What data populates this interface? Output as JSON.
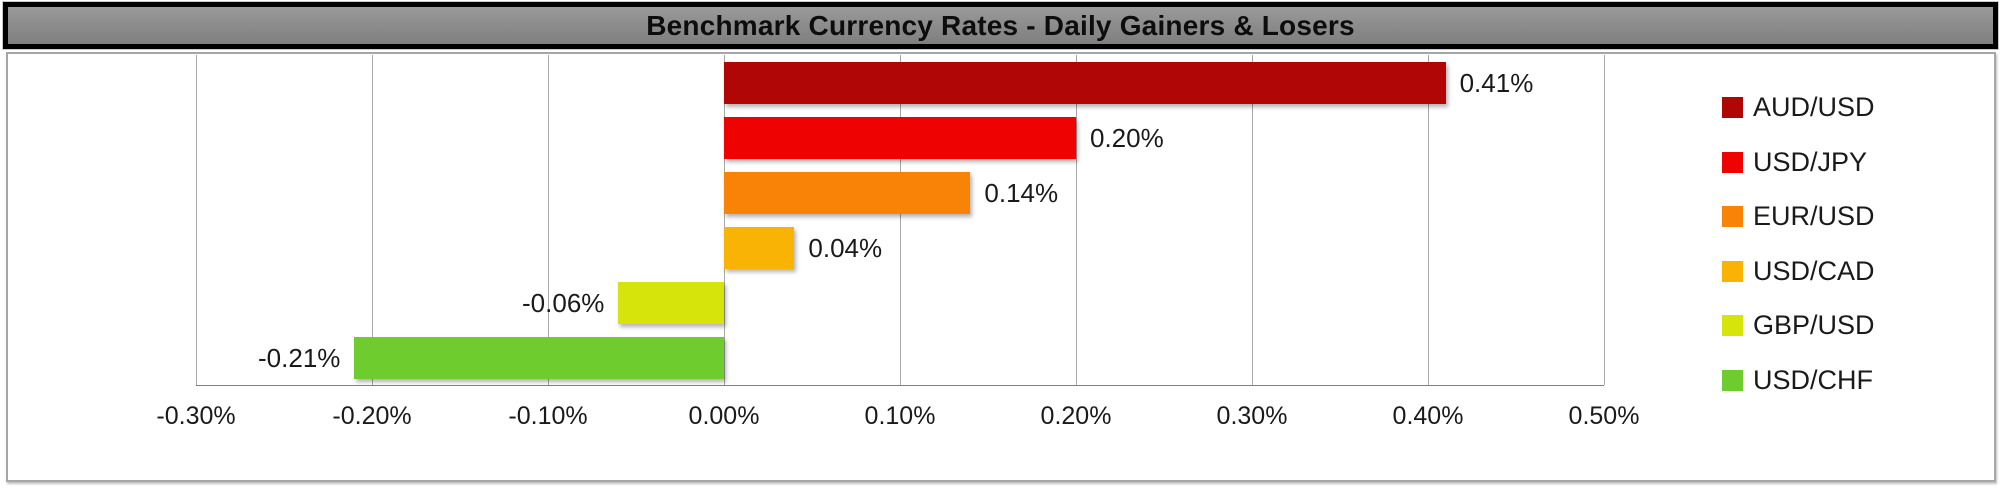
{
  "title": "Benchmark Currency Rates - Daily Gainers & Losers",
  "title_bar": {
    "background": "#8c8c8c",
    "border_color": "#000000",
    "text_color": "#0d0d0d"
  },
  "chart_data": {
    "type": "bar",
    "orientation": "horizontal",
    "title": "Benchmark Currency Rates - Daily Gainers & Losers",
    "xlabel": "",
    "ylabel": "",
    "categories": [
      "AUD/USD",
      "USD/JPY",
      "EUR/USD",
      "USD/CAD",
      "GBP/USD",
      "USD/CHF"
    ],
    "values": [
      0.41,
      0.2,
      0.14,
      0.04,
      -0.06,
      -0.21
    ],
    "value_labels": [
      "0.41%",
      "0.20%",
      "0.14%",
      "0.04%",
      "-0.06%",
      "-0.21%"
    ],
    "colors": [
      "#B00606",
      "#EE0202",
      "#F98307",
      "#F9B304",
      "#D6E40B",
      "#6FCC2E"
    ],
    "xlim": [
      -0.3,
      0.5
    ],
    "x_ticks": [
      -0.3,
      -0.2,
      -0.1,
      0.0,
      0.1,
      0.2,
      0.3,
      0.4,
      0.5
    ],
    "x_tick_labels": [
      "-0.30%",
      "-0.20%",
      "-0.10%",
      "0.00%",
      "0.10%",
      "0.20%",
      "0.30%",
      "0.40%",
      "0.50%"
    ],
    "grid": "vertical",
    "gridline_color": "#a6a6a6",
    "axis_line_color": "#808080",
    "legend": {
      "position": "right",
      "entries": [
        "AUD/USD",
        "USD/JPY",
        "EUR/USD",
        "USD/CAD",
        "GBP/USD",
        "USD/CHF"
      ]
    }
  }
}
